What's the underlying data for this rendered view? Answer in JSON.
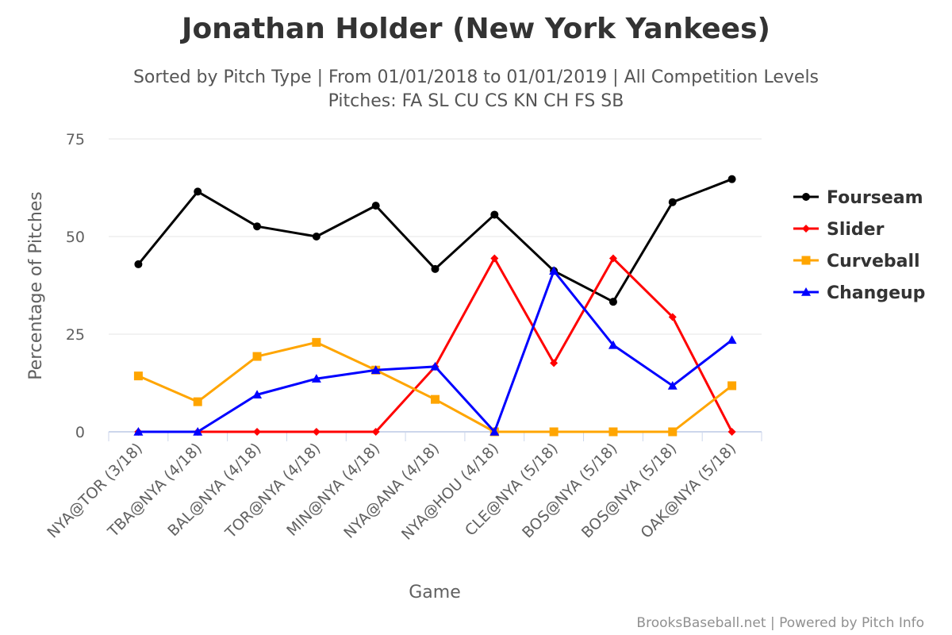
{
  "chart_data": {
    "type": "line",
    "title": "Jonathan Holder (New York Yankees)",
    "subtitle_line1": "Sorted by Pitch Type | From 01/01/2018 to 01/01/2019 | All Competition Levels",
    "subtitle_line2": "Pitches: FA SL CU CS KN CH FS SB",
    "xlabel": "Game",
    "ylabel": "Percentage of Pitches",
    "ylim": [
      0,
      75
    ],
    "yticks": [
      0,
      25,
      50,
      75
    ],
    "categories": [
      "NYA@TOR (3/18)",
      "TBA@NYA (4/18)",
      "BAL@NYA (4/18)",
      "TOR@NYA (4/18)",
      "MIN@NYA (4/18)",
      "NYA@ANA (4/18)",
      "NYA@HOU (4/18)",
      "CLE@NYA (5/18)",
      "BOS@NYA (5/18)",
      "BOS@NYA (5/18)",
      "OAK@NYA (5/18)"
    ],
    "legend_position": "right",
    "grid": true,
    "series": [
      {
        "name": "Fourseam",
        "color": "#000000",
        "marker": "circle",
        "values": [
          42.9,
          61.5,
          52.6,
          50.0,
          57.9,
          41.7,
          55.6,
          41.2,
          33.3,
          58.8,
          64.7
        ]
      },
      {
        "name": "Slider",
        "color": "#ff0000",
        "marker": "diamond",
        "values": [
          0,
          0,
          0,
          0,
          0,
          16.7,
          44.4,
          17.6,
          44.4,
          29.4,
          0
        ]
      },
      {
        "name": "Curveball",
        "color": "#ffa500",
        "marker": "square",
        "values": [
          14.3,
          7.7,
          19.3,
          22.9,
          15.8,
          8.3,
          0,
          0,
          0,
          0,
          11.8
        ]
      },
      {
        "name": "Changeup",
        "color": "#0000ff",
        "marker": "triangle",
        "values": [
          0,
          0,
          9.5,
          13.6,
          15.8,
          16.7,
          0,
          41.2,
          22.2,
          11.8,
          23.5
        ]
      }
    ]
  },
  "credit": "BrooksBaseball.net | Powered by Pitch Info"
}
